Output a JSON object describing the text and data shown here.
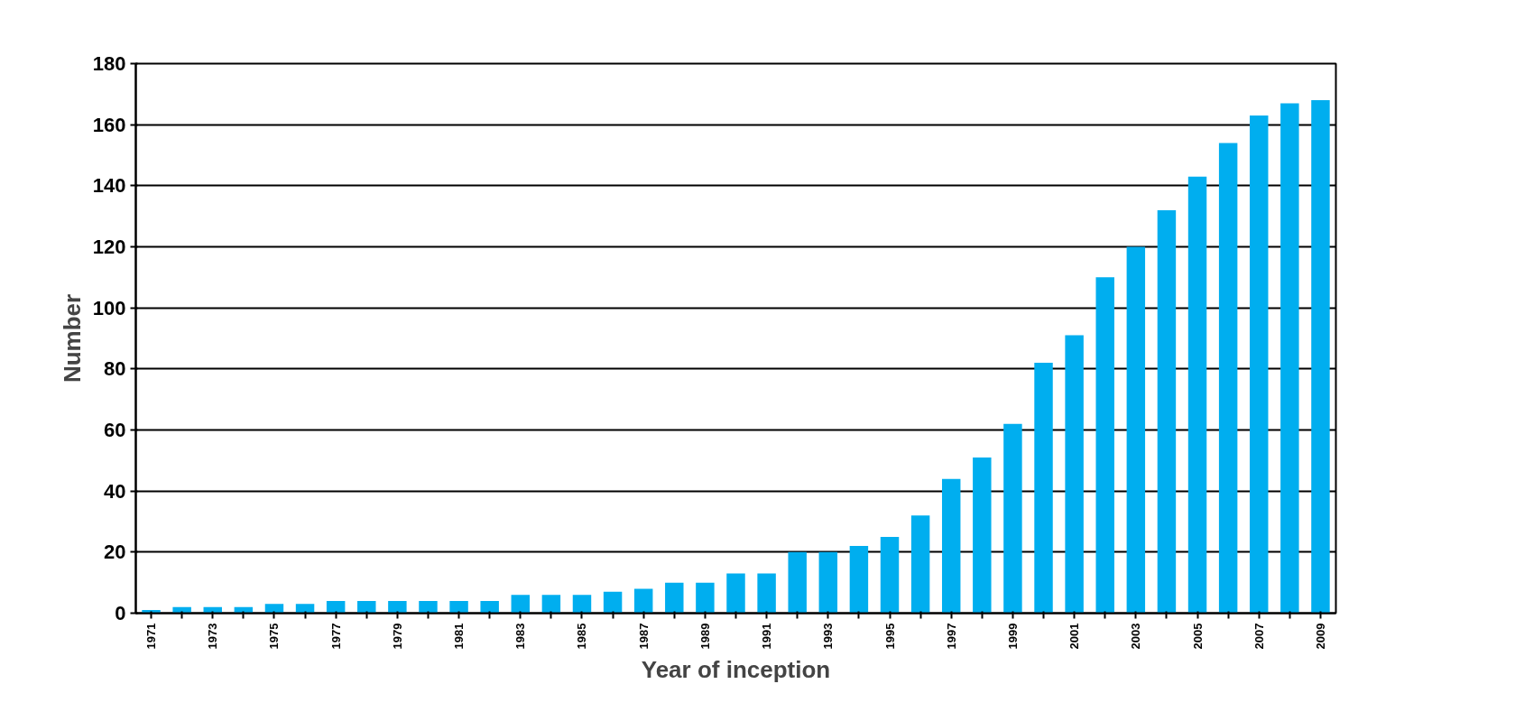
{
  "chart_data": {
    "type": "bar",
    "xlabel": "Year of inception",
    "ylabel": "Number",
    "categories": [
      "1971",
      null,
      "1973",
      null,
      "1975",
      null,
      "1977",
      null,
      "1979",
      null,
      "1981",
      null,
      "1983",
      null,
      "1985",
      null,
      "1987",
      null,
      "1989",
      null,
      "1991",
      null,
      "1993",
      null,
      "1995",
      null,
      "1997",
      null,
      "1999",
      null,
      "2001",
      null,
      "2003",
      null,
      "2005",
      null,
      "2007",
      null,
      "2009"
    ],
    "values": [
      1,
      2,
      2,
      2,
      3,
      3,
      4,
      4,
      4,
      4,
      4,
      4,
      6,
      6,
      6,
      7,
      8,
      10,
      10,
      13,
      13,
      20,
      20,
      22,
      25,
      32,
      44,
      51,
      62,
      82,
      91,
      110,
      120,
      132,
      143,
      154,
      163,
      167,
      168
    ],
    "color": "#00aeef",
    "ylim": [
      0,
      180
    ],
    "yticks": [
      0,
      20,
      40,
      60,
      80,
      100,
      120,
      140,
      160,
      180
    ],
    "grid": "y"
  }
}
